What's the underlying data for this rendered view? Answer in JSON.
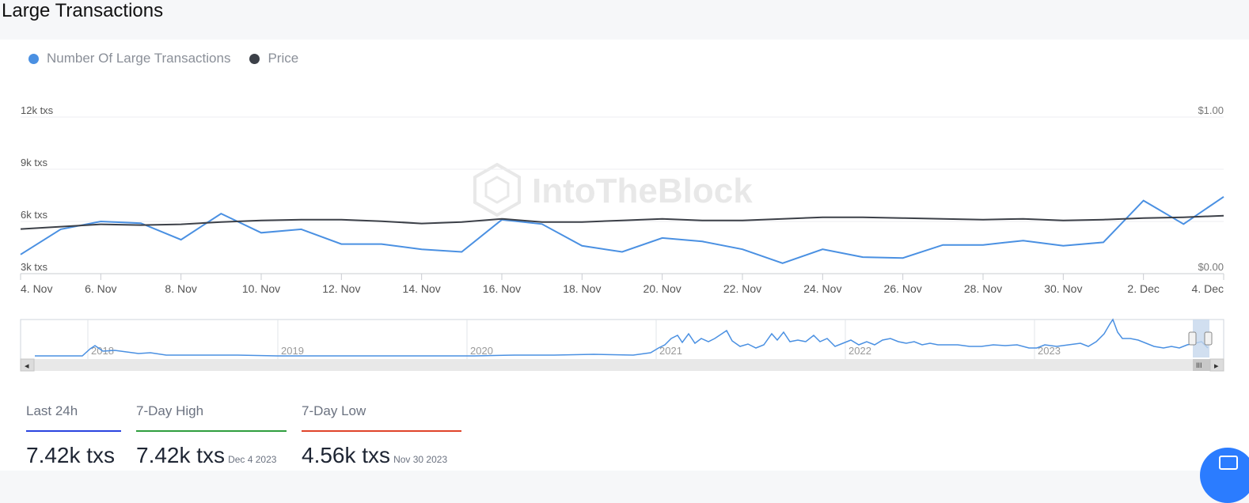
{
  "header": {
    "title": "Large Transactions"
  },
  "legend": [
    {
      "label": "Number Of Large Transactions",
      "color": "#4a90e2"
    },
    {
      "label": "Price",
      "color": "#3c4048"
    }
  ],
  "watermark": "IntoTheBlock",
  "chart_data": {
    "type": "line",
    "x": [
      "4 Nov",
      "5 Nov",
      "6 Nov",
      "7 Nov",
      "8 Nov",
      "9 Nov",
      "10 Nov",
      "11 Nov",
      "12 Nov",
      "13 Nov",
      "14 Nov",
      "15 Nov",
      "16 Nov",
      "17 Nov",
      "18 Nov",
      "19 Nov",
      "20 Nov",
      "21 Nov",
      "22 Nov",
      "23 Nov",
      "24 Nov",
      "25 Nov",
      "26 Nov",
      "27 Nov",
      "28 Nov",
      "29 Nov",
      "30 Nov",
      "1 Dec",
      "2 Dec",
      "3 Dec",
      "4 Dec"
    ],
    "x_tick_labels": [
      "4. Nov",
      "6. Nov",
      "8. Nov",
      "10. Nov",
      "12. Nov",
      "14. Nov",
      "16. Nov",
      "18. Nov",
      "20. Nov",
      "22. Nov",
      "24. Nov",
      "26. Nov",
      "28. Nov",
      "30. Nov",
      "2. Dec",
      "4. Dec"
    ],
    "y_left": {
      "ticks": [
        "3k txs",
        "6k txs",
        "9k txs",
        "12k txs"
      ],
      "tick_values": [
        3000,
        6000,
        9000,
        12000
      ],
      "range": [
        3000,
        12000
      ]
    },
    "y_right": {
      "ticks": [
        "$0.00",
        "$1.00"
      ],
      "tick_values": [
        0,
        1
      ],
      "range": [
        0,
        1
      ]
    },
    "series": [
      {
        "name": "Number Of Large Transactions",
        "axis": "left",
        "color": "#4a90e2",
        "values": [
          4100,
          5550,
          6000,
          5900,
          4950,
          6450,
          5350,
          5550,
          4700,
          4700,
          4400,
          4250,
          6100,
          5850,
          4600,
          4250,
          5050,
          4850,
          4400,
          3600,
          4400,
          3950,
          3900,
          4650,
          4650,
          4900,
          4600,
          4800,
          7200,
          5850,
          7420
        ]
      },
      {
        "name": "Price",
        "axis": "right",
        "color": "#3c4048",
        "values": [
          0.285,
          0.3,
          0.315,
          0.31,
          0.315,
          0.33,
          0.34,
          0.345,
          0.345,
          0.335,
          0.32,
          0.33,
          0.35,
          0.33,
          0.33,
          0.34,
          0.35,
          0.34,
          0.34,
          0.35,
          0.36,
          0.36,
          0.355,
          0.35,
          0.345,
          0.35,
          0.34,
          0.345,
          0.355,
          0.36,
          0.37
        ]
      }
    ],
    "navigator": {
      "year_labels": [
        "2018",
        "2019",
        "2020",
        "2021",
        "2022",
        "2023"
      ]
    }
  },
  "stats": [
    {
      "label": "Last 24h",
      "value": "7.42k txs",
      "date": "",
      "color": "#2b44e0"
    },
    {
      "label": "7-Day High",
      "value": "7.42k txs",
      "date": "Dec 4 2023",
      "color": "#2e9e3e"
    },
    {
      "label": "7-Day Low",
      "value": "4.56k txs",
      "date": "Nov 30 2023",
      "color": "#e0442b"
    }
  ],
  "navigator_controls": {
    "left_arrow": "◂",
    "right_arrow": "▸",
    "grip": "III"
  }
}
